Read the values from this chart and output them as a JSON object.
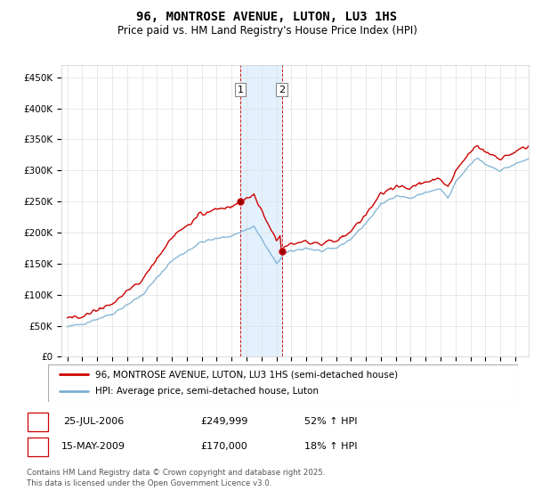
{
  "title": "96, MONTROSE AVENUE, LUTON, LU3 1HS",
  "subtitle": "Price paid vs. HM Land Registry's House Price Index (HPI)",
  "ylim": [
    0,
    470000
  ],
  "yticks": [
    0,
    50000,
    100000,
    150000,
    200000,
    250000,
    300000,
    350000,
    400000,
    450000
  ],
  "ytick_labels": [
    "£0",
    "£50K",
    "£100K",
    "£150K",
    "£200K",
    "£250K",
    "£300K",
    "£350K",
    "£400K",
    "£450K"
  ],
  "background_color": "#ffffff",
  "grid_color": "#e0e0e0",
  "sale1_year": 2006.583,
  "sale1_price": 249999,
  "sale2_year": 2009.375,
  "sale2_price": 170000,
  "red_color": "#cc0000",
  "blue_color": "#7ab0d4",
  "shading_color": "#ddeeff",
  "legend_line1": "96, MONTROSE AVENUE, LUTON, LU3 1HS (semi-detached house)",
  "legend_line2": "HPI: Average price, semi-detached house, Luton",
  "table_row1": [
    "1",
    "25-JUL-2006",
    "£249,999",
    "52% ↑ HPI"
  ],
  "table_row2": [
    "2",
    "15-MAY-2009",
    "£170,000",
    "18% ↑ HPI"
  ],
  "footer": "Contains HM Land Registry data © Crown copyright and database right 2025.\nThis data is licensed under the Open Government Licence v3.0."
}
